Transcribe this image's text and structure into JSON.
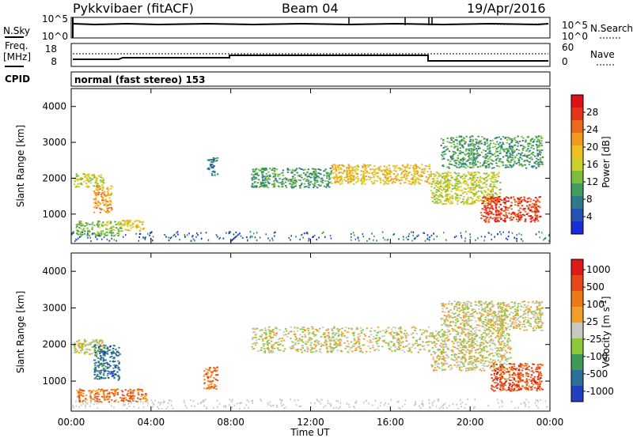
{
  "header": {
    "radar": "Pykkvibaer (fitACF)",
    "beam": "Beam 04",
    "date": "19/Apr/2016"
  },
  "noise_panel": {
    "left_label": "N.Sky",
    "right_label": "N.Search",
    "left_ticks": [
      "10^5",
      "10^0"
    ],
    "right_ticks": [
      "10^5",
      "10^0"
    ]
  },
  "freq_panel": {
    "left_label_1": "Freq.",
    "left_label_2": "[MHz]",
    "right_label": "Nave",
    "left_ticks": [
      "18",
      "8"
    ],
    "right_ticks": [
      "60",
      "0"
    ],
    "cpid_label": "CPID",
    "cpid_text": "normal (fast stereo) 153"
  },
  "chart_data": [
    {
      "type": "heatmap",
      "title": "",
      "xlabel": "Time UT",
      "ylabel": "Slant Range [km]",
      "xlim": [
        "00:00",
        "24:00"
      ],
      "ylim": [
        180,
        4500
      ],
      "x_ticks": [
        "00:00",
        "04:00",
        "08:00",
        "12:00",
        "16:00",
        "20:00",
        "00:00"
      ],
      "y_ticks": [
        "1000",
        "2000",
        "3000",
        "4000"
      ],
      "colorbar": {
        "label": "Power [dB]",
        "ticks": [
          "4",
          "8",
          "12",
          "16",
          "20",
          "24",
          "28"
        ],
        "colors": [
          "#1a2bd8",
          "#2453b4",
          "#2e7a8a",
          "#3fa05e",
          "#7cbe3c",
          "#c8d22a",
          "#f0c020",
          "#f09a1e",
          "#ec6a1c",
          "#e8341a",
          "#e0101a"
        ]
      },
      "regions": [
        {
          "t0": 0.1,
          "t1": 1.6,
          "r0": 1750,
          "r1": 2150,
          "level": 5
        },
        {
          "t0": 1.1,
          "t1": 2.0,
          "r0": 1050,
          "r1": 1800,
          "level": 7
        },
        {
          "t0": 0.2,
          "t1": 2.5,
          "r0": 400,
          "r1": 820,
          "level": 4
        },
        {
          "t0": 2.5,
          "t1": 3.6,
          "r0": 550,
          "r1": 850,
          "level": 6
        },
        {
          "t0": 6.8,
          "t1": 7.3,
          "r0": 2100,
          "r1": 2600,
          "level": 2
        },
        {
          "t0": 9.0,
          "t1": 13.0,
          "r0": 1750,
          "r1": 2300,
          "level": 3
        },
        {
          "t0": 13.0,
          "t1": 18.0,
          "r0": 1850,
          "r1": 2400,
          "level": 6
        },
        {
          "t0": 18.0,
          "t1": 21.5,
          "r0": 1300,
          "r1": 2200,
          "level": 5
        },
        {
          "t0": 20.5,
          "t1": 23.5,
          "r0": 800,
          "r1": 1500,
          "level": 9
        },
        {
          "t0": 18.5,
          "t1": 23.6,
          "r0": 2300,
          "r1": 3200,
          "level": 3
        }
      ]
    },
    {
      "type": "heatmap",
      "title": "",
      "xlabel": "Time UT",
      "ylabel": "Slant Range [km]",
      "xlim": [
        "00:00",
        "24:00"
      ],
      "ylim": [
        180,
        4500
      ],
      "x_ticks": [
        "00:00",
        "04:00",
        "08:00",
        "12:00",
        "16:00",
        "20:00",
        "00:00"
      ],
      "y_ticks": [
        "1000",
        "2000",
        "3000",
        "4000"
      ],
      "colorbar": {
        "label": "Velocity [m s^-1]",
        "ticks": [
          "1000",
          "500",
          "100",
          "25",
          "-25",
          "-100",
          "-500",
          "-1000"
        ],
        "colors": [
          "#2040c0",
          "#2e6e9a",
          "#3f9a5a",
          "#8cc83c",
          "#c8c8c0",
          "#f0a028",
          "#ec7818",
          "#e84818",
          "#e01818"
        ]
      },
      "regions": [
        {
          "t0": 0.1,
          "t1": 1.6,
          "r0": 1750,
          "r1": 2150,
          "level": 4
        },
        {
          "t0": 1.1,
          "t1": 2.4,
          "r0": 1050,
          "r1": 2000,
          "level": 1
        },
        {
          "t0": 0.2,
          "t1": 3.8,
          "r0": 450,
          "r1": 800,
          "level": 6
        },
        {
          "t0": 6.6,
          "t1": 7.3,
          "r0": 800,
          "r1": 1400,
          "level": 6
        },
        {
          "t0": 9.0,
          "t1": 18.0,
          "r0": 1800,
          "r1": 2500,
          "level": 4
        },
        {
          "t0": 18.0,
          "t1": 22.0,
          "r0": 1300,
          "r1": 2400,
          "level": 4
        },
        {
          "t0": 21.0,
          "t1": 23.6,
          "r0": 750,
          "r1": 1500,
          "level": 7
        },
        {
          "t0": 18.5,
          "t1": 23.6,
          "r0": 2400,
          "r1": 3200,
          "level": 4
        }
      ]
    }
  ]
}
